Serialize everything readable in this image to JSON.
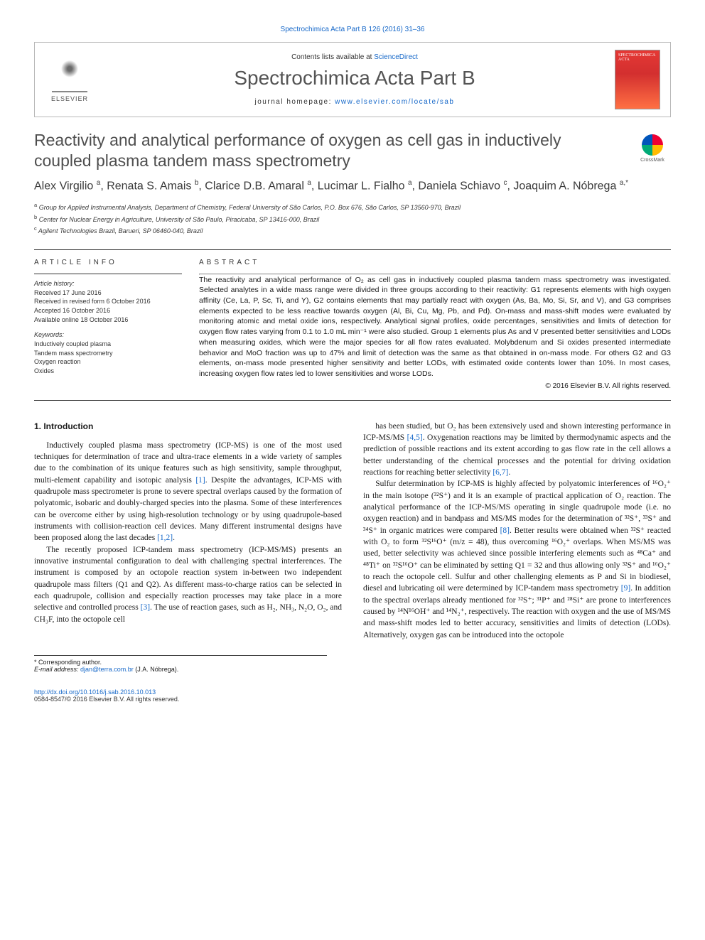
{
  "top_link": "Spectrochimica Acta Part B 126 (2016) 31–36",
  "header": {
    "publisher": "ELSEVIER",
    "contents_prefix": "Contents lists available at ",
    "contents_link": "ScienceDirect",
    "journal": "Spectrochimica Acta Part B",
    "homepage_prefix": "journal homepage: ",
    "homepage_url": "www.elsevier.com/locate/sab",
    "cover_label": "SPECTROCHIMICA ACTA"
  },
  "paper": {
    "title": "Reactivity and analytical performance of oxygen as cell gas in inductively coupled plasma tandem mass spectrometry",
    "crossmark": "CrossMark",
    "authors_html": "Alex Virgilio <sup>a</sup>, Renata S. Amais <sup>b</sup>, Clarice D.B. Amaral <sup>a</sup>, Lucimar L. Fialho <sup>a</sup>, Daniela Schiavo <sup>c</sup>, Joaquim A. Nóbrega <sup>a,*</sup>",
    "affiliations": {
      "a": "Group for Applied Instrumental Analysis, Department of Chemistry, Federal University of São Carlos, P.O. Box 676, São Carlos, SP 13560-970, Brazil",
      "b": "Center for Nuclear Energy in Agriculture, University of São Paulo, Piracicaba, SP 13416-000, Brazil",
      "c": "Agilent Technologies Brazil, Barueri, SP 06460-040, Brazil"
    }
  },
  "article_info": {
    "heading": "ARTICLE INFO",
    "history_label": "Article history:",
    "history": "Received 17 June 2016\nReceived in revised form 6 October 2016\nAccepted 16 October 2016\nAvailable online 18 October 2016",
    "keywords_label": "Keywords:",
    "keywords": "Inductively coupled plasma\nTandem mass spectrometry\nOxygen reaction\nOxides"
  },
  "abstract": {
    "heading": "ABSTRACT",
    "text": "The reactivity and analytical performance of O₂ as cell gas in inductively coupled plasma tandem mass spectrometry was investigated. Selected analytes in a wide mass range were divided in three groups according to their reactivity: G1 represents elements with high oxygen affinity (Ce, La, P, Sc, Ti, and Y), G2 contains elements that may partially react with oxygen (As, Ba, Mo, Si, Sr, and V), and G3 comprises elements expected to be less reactive towards oxygen (Al, Bi, Cu, Mg, Pb, and Pd). On-mass and mass-shift modes were evaluated by monitoring atomic and metal oxide ions, respectively. Analytical signal profiles, oxide percentages, sensitivities and limits of detection for oxygen flow rates varying from 0.1 to 1.0 mL min⁻¹ were also studied. Group 1 elements plus As and V presented better sensitivities and LODs when measuring oxides, which were the major species for all flow rates evaluated. Molybdenum and Si oxides presented intermediate behavior and MoO fraction was up to 47% and limit of detection was the same as that obtained in on-mass mode. For others G2 and G3 elements, on-mass mode presented higher sensitivity and better LODs, with estimated oxide contents lower than 10%. In most cases, increasing oxygen flow rates led to lower sensitivities and worse LODs.",
    "copyright": "© 2016 Elsevier B.V. All rights reserved."
  },
  "body": {
    "section1_heading": "1. Introduction",
    "p1": "Inductively coupled plasma mass spectrometry (ICP-MS) is one of the most used techniques for determination of trace and ultra-trace elements in a wide variety of samples due to the combination of its unique features such as high sensitivity, sample throughput, multi-element capability and isotopic analysis [1]. Despite the advantages, ICP-MS with quadrupole mass spectrometer is prone to severe spectral overlaps caused by the formation of polyatomic, isobaric and doubly-charged species into the plasma. Some of these interferences can be overcome either by using high-resolution technology or by using quadrupole-based instruments with collision-reaction cell devices. Many different instrumental designs have been proposed along the last decades [1,2].",
    "p2": "The recently proposed ICP-tandem mass spectrometry (ICP-MS/MS) presents an innovative instrumental configuration to deal with challenging spectral interferences. The instrument is composed by an octopole reaction system in-between two independent quadrupole mass filters (Q1 and Q2). As different mass-to-charge ratios can be selected in each quadrupole, collision and especially reaction processes may take place in a more selective and controlled process [3]. The use of reaction gases, such as H₂, NH₃, N₂O, O₂, and CH₃F, into the octopole cell",
    "p3": "has been studied, but O₂ has been extensively used and shown interesting performance in ICP-MS/MS [4,5]. Oxygenation reactions may be limited by thermodynamic aspects and the prediction of possible reactions and its extent according to gas flow rate in the cell allows a better understanding of the chemical processes and the potential for driving oxidation reactions for reaching better selectivity [6,7].",
    "p4": "Sulfur determination by ICP-MS is highly affected by polyatomic interferences of ¹⁶O₂⁺ in the main isotope (³²S⁺) and it is an example of practical application of O₂ reaction. The analytical performance of the ICP-MS/MS operating in single quadrupole mode (i.e. no oxygen reaction) and in bandpass and MS/MS modes for the determination of ³²S⁺, ³³S⁺ and ³⁴S⁺ in organic matrices were compared [8]. Better results were obtained when ³²S⁺ reacted with O₂ to form ³²S¹⁶O⁺ (m/z = 48), thus overcoming ¹⁶O₂⁺ overlaps. When MS/MS was used, better selectivity was achieved since possible interfering elements such as ⁴⁸Ca⁺ and ⁴⁸Ti⁺ on ³²S¹⁶O⁺ can be eliminated by setting Q1 = 32 and thus allowing only ³²S⁺ and ¹⁶O₂⁺ to reach the octopole cell. Sulfur and other challenging elements as P and Si in biodiesel, diesel and lubricating oil were determined by ICP-tandem mass spectrometry [9]. In addition to the spectral overlaps already mentioned for ³²S⁺; ³¹P⁺ and ²⁸Si⁺ are prone to interferences caused by ¹⁴N¹⁶OH⁺ and ¹⁴N₂⁺, respectively. The reaction with oxygen and the use of MS/MS and mass-shift modes led to better accuracy, sensitivities and limits of detection (LODs). Alternatively, oxygen gas can be introduced into the octopole"
  },
  "corresponding": {
    "label": "* Corresponding author.",
    "email_label": "E-mail address: ",
    "email": "djan@terra.com.br",
    "name": " (J.A. Nóbrega)."
  },
  "footer": {
    "doi": "http://dx.doi.org/10.1016/j.sab.2016.10.013",
    "issn": "0584-8547/© 2016 Elsevier B.V. All rights reserved."
  },
  "colors": {
    "link": "#1668c9",
    "text": "#1a1a1a",
    "title_gray": "#4e4e4e",
    "rule": "#333333",
    "cover_red": "#d32f2f"
  }
}
